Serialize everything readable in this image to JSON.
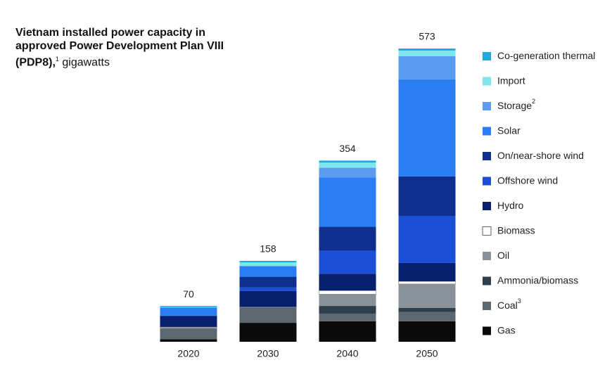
{
  "chart_data": {
    "type": "stacked_bar",
    "title": "Vietnam installed power capacity in approved Power Development Plan VIII (PDP8),",
    "title_note": "1",
    "unit": "gigawatts",
    "categories": [
      "2020",
      "2030",
      "2040",
      "2050"
    ],
    "totals": [
      70,
      158,
      354,
      573
    ],
    "series": [
      {
        "name": "Gas",
        "color": "#0a0a0a",
        "values": [
          5,
          37,
          40,
          40
        ]
      },
      {
        "name": "Coal",
        "note": "3",
        "color": "#5c6870",
        "values": [
          21,
          30,
          15,
          18
        ]
      },
      {
        "name": "Ammonia/biomass",
        "color": "#2d3e4c",
        "values": [
          0,
          0,
          15,
          8
        ]
      },
      {
        "name": "Oil",
        "color": "#8a9299",
        "values": [
          2,
          0,
          23,
          47
        ]
      },
      {
        "name": "Biomass",
        "color": "#ffffff",
        "values": [
          1,
          1,
          7,
          5
        ]
      },
      {
        "name": "Hydro",
        "color": "#071f6e",
        "values": [
          21,
          31,
          33,
          36
        ]
      },
      {
        "name": "Offshore wind",
        "color": "#1d4fd6",
        "values": [
          0,
          7,
          45,
          92
        ]
      },
      {
        "name": "On/near-shore wind",
        "color": "#0f2f8f",
        "values": [
          1,
          21,
          47,
          77
        ]
      },
      {
        "name": "Solar",
        "color": "#2a7df2",
        "values": [
          16,
          21,
          96,
          190
        ]
      },
      {
        "name": "Storage",
        "note": "2",
        "color": "#5b9cf0",
        "values": [
          0,
          0,
          19,
          45
        ]
      },
      {
        "name": "Import",
        "color": "#7fe6ec",
        "values": [
          1,
          7,
          10,
          11
        ]
      },
      {
        "name": "Co-generation thermal",
        "color": "#1fa9e0",
        "values": [
          2,
          3,
          4,
          4
        ]
      }
    ]
  }
}
